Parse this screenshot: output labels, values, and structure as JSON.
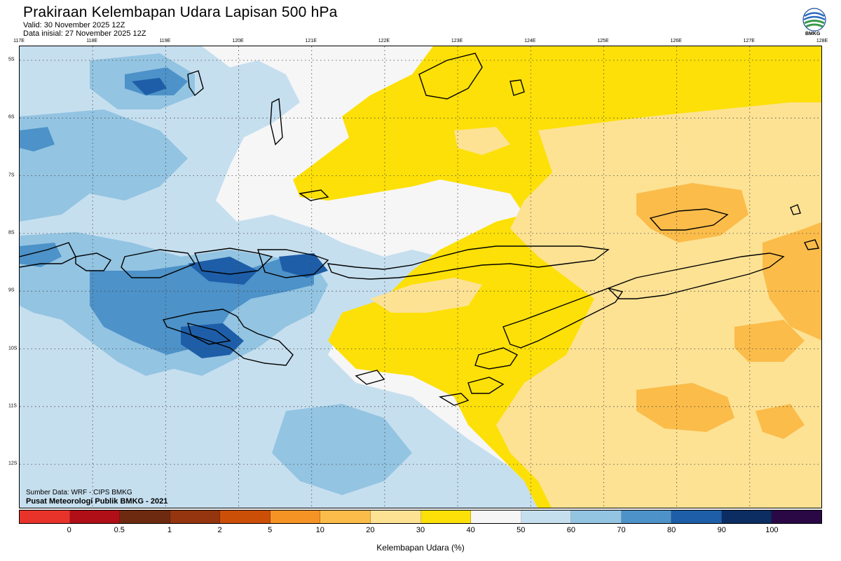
{
  "title": "Prakiraan Kelembapan Udara Lapisan 500 hPa",
  "valid": "Valid: 30 November 2025 12Z",
  "initial": "Data inisial: 27 November 2025 12Z",
  "logo": {
    "name": "bmkg-logo",
    "text": "BMKG"
  },
  "longitude_labels": [
    "117E",
    "118E",
    "119E",
    "120E",
    "121E",
    "122E",
    "123E",
    "124E",
    "125E",
    "126E",
    "127E",
    "128E"
  ],
  "latitude_labels": [
    "5S",
    "6S",
    "7S",
    "8S",
    "9S",
    "10S",
    "11S",
    "12S"
  ],
  "source": "Sumber Data: WRF - CIPS BMKG",
  "credit": "Pusat Meteorologi Publik BMKG - 2021",
  "colorbar": {
    "label": "Kelembapan Udara (%)",
    "ticks": [
      "0",
      "0.5",
      "1",
      "2",
      "5",
      "10",
      "20",
      "30",
      "40",
      "50",
      "60",
      "70",
      "80",
      "90",
      "100"
    ],
    "colors": [
      "#e8332b",
      "#b00f18",
      "#6e2a10",
      "#94350f",
      "#cc4f08",
      "#f59325",
      "#fbbc4a",
      "#fde294",
      "#fde007",
      "#f6f6f6",
      "#c6dfef",
      "#93c4e2",
      "#4d92c8",
      "#1e5ea8",
      "#0c2d62",
      "#2a0845"
    ]
  },
  "humidity_fields": {
    "west_region": "Mostly 50-80% humid (blue shading) over Nusa Tenggara Barat and Flores Sea",
    "east_region": "Mostly 20-40% dry (yellow/orange shading) over Banda Sea and Timor"
  }
}
